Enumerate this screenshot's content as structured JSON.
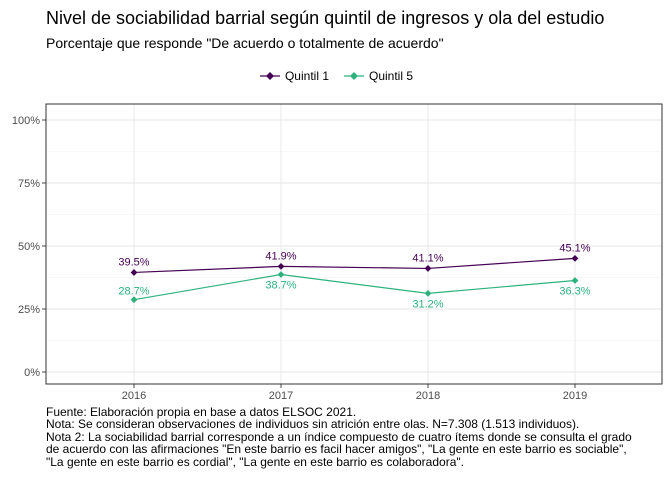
{
  "chart_data": {
    "type": "line",
    "title": "Nivel de sociabilidad barrial según quintil de ingresos y ola del estudio",
    "subtitle": "Porcentaje que responde \"De acuerdo o totalmente de acuerdo\"",
    "categories": [
      "2016",
      "2017",
      "2018",
      "2019"
    ],
    "series": [
      {
        "name": "Quintil 1",
        "color": "#440154",
        "values": [
          39.5,
          41.9,
          41.1,
          45.1
        ],
        "labels": [
          "39.5%",
          "41.9%",
          "41.1%",
          "45.1%"
        ]
      },
      {
        "name": "Quintil 5",
        "color": "#2db27d",
        "values": [
          28.7,
          38.7,
          31.2,
          36.3
        ],
        "labels": [
          "28.7%",
          "38.7%",
          "31.2%",
          "36.3%"
        ]
      }
    ],
    "ylim": [
      0,
      100
    ],
    "yticks": [
      0,
      25,
      50,
      75,
      100
    ],
    "ytick_labels": [
      "0%",
      "25%",
      "50%",
      "75%",
      "100%"
    ],
    "grid": true,
    "legend_position": "top",
    "notes": [
      "Fuente: Elaboración propia en base a datos ELSOC 2021.",
      "Nota: Se consideran observaciones de individuos sin atrición entre olas. N=7.308 (1.513 individuos).",
      "Nota 2: La sociabilidad barrial corresponde a un índice compuesto de cuatro ítems donde se consulta el grado",
      "de acuerdo con las afirmaciones \"En este barrio es facil hacer amigos\", \"La gente en este barrio es sociable\",",
      "\"La gente en este barrio es cordial\", \"La gente en este barrio es colaboradora\"."
    ]
  }
}
